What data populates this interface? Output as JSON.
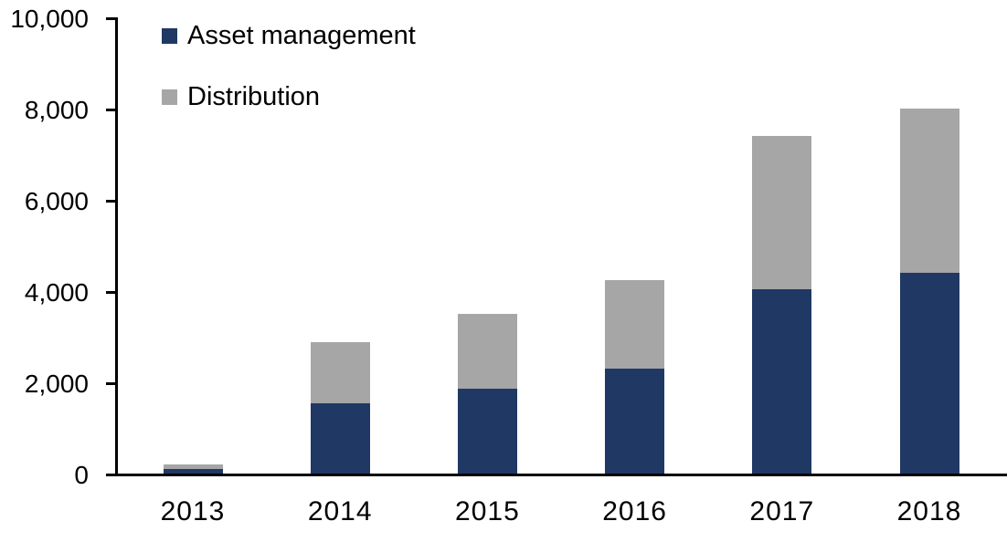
{
  "chart_data": {
    "type": "bar",
    "stacked": true,
    "title": "",
    "xlabel": "",
    "ylabel": "",
    "categories": [
      "2013",
      "2014",
      "2015",
      "2016",
      "2017",
      "2018"
    ],
    "series": [
      {
        "name": "Asset management",
        "color": "#203864",
        "values": [
          100,
          1550,
          1870,
          2300,
          4050,
          4400
        ]
      },
      {
        "name": "Distribution",
        "color": "#A6A6A6",
        "values": [
          100,
          1330,
          1630,
          1950,
          3350,
          3600
        ]
      }
    ],
    "totals": [
      200,
      2880,
      3500,
      4250,
      7400,
      8000
    ],
    "ylim": [
      0,
      10000
    ],
    "y_ticks": [
      0,
      2000,
      4000,
      6000,
      8000,
      10000
    ],
    "y_tick_labels": [
      "0",
      "2,000",
      "4,000",
      "6,000",
      "8,000",
      "10,000"
    ],
    "legend_position": "top-left",
    "grid": false,
    "axis_color": "#000000",
    "background_color": "#FFFFFF"
  }
}
